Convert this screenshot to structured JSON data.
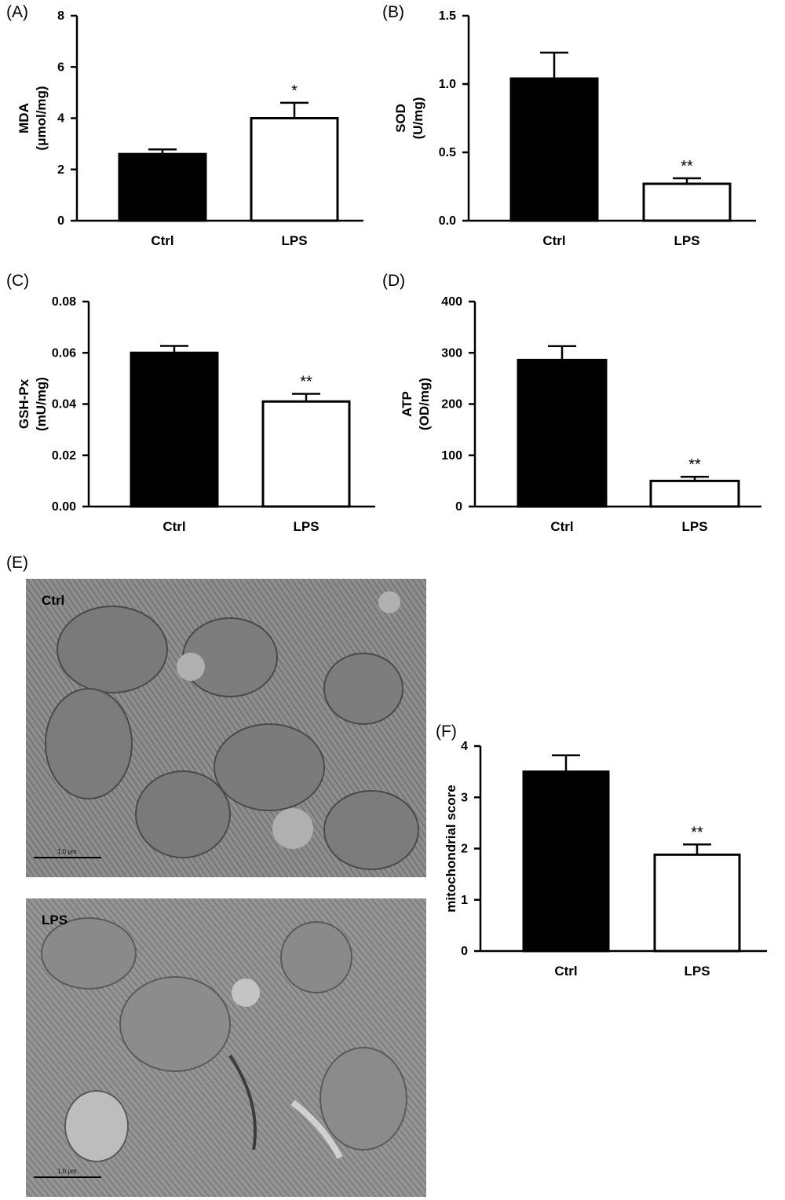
{
  "chart_data": [
    {
      "panel": "(A)",
      "type": "bar",
      "categories": [
        "Ctrl",
        "LPS"
      ],
      "values": [
        2.6,
        4.0
      ],
      "errors": [
        0.18,
        0.6
      ],
      "significance": [
        "",
        "*"
      ],
      "ylabel": [
        "MDA",
        "(μmol/mg)"
      ],
      "ylim": [
        0,
        8
      ],
      "yticks": [
        "0",
        "2",
        "4",
        "6",
        "8"
      ],
      "bar_colors": [
        "#000000",
        "#ffffff"
      ]
    },
    {
      "panel": "(B)",
      "type": "bar",
      "categories": [
        "Ctrl",
        "LPS"
      ],
      "values": [
        1.04,
        0.27
      ],
      "errors": [
        0.19,
        0.04
      ],
      "significance": [
        "",
        "**"
      ],
      "ylabel": [
        "SOD",
        "(U/mg)"
      ],
      "ylim": [
        0,
        1.5
      ],
      "yticks": [
        "0.0",
        "0.5",
        "1.0",
        "1.5"
      ],
      "bar_colors": [
        "#000000",
        "#ffffff"
      ]
    },
    {
      "panel": "(C)",
      "type": "bar",
      "categories": [
        "Ctrl",
        "LPS"
      ],
      "values": [
        0.06,
        0.041
      ],
      "errors": [
        0.0027,
        0.003
      ],
      "significance": [
        "",
        "**"
      ],
      "ylabel": [
        "GSH-Px",
        "(mU/mg)"
      ],
      "ylim": [
        0,
        0.08
      ],
      "yticks": [
        "0.00",
        "0.02",
        "0.04",
        "0.06",
        "0.08"
      ],
      "bar_colors": [
        "#000000",
        "#ffffff"
      ]
    },
    {
      "panel": "(D)",
      "type": "bar",
      "categories": [
        "Ctrl",
        "LPS"
      ],
      "values": [
        286,
        50
      ],
      "errors": [
        27,
        8
      ],
      "significance": [
        "",
        "**"
      ],
      "ylabel": [
        "ATP",
        "(OD/mg)"
      ],
      "ylim": [
        0,
        400
      ],
      "yticks": [
        "0",
        "100",
        "200",
        "300",
        "400"
      ],
      "bar_colors": [
        "#000000",
        "#ffffff"
      ]
    },
    {
      "panel": "(F)",
      "type": "bar",
      "categories": [
        "Ctrl",
        "LPS"
      ],
      "values": [
        3.5,
        1.88
      ],
      "errors": [
        0.32,
        0.2
      ],
      "significance": [
        "",
        "**"
      ],
      "ylabel": [
        "mitochondrial score"
      ],
      "ylim": [
        0,
        4
      ],
      "yticks": [
        "0",
        "1",
        "2",
        "3",
        "4"
      ],
      "bar_colors": [
        "#000000",
        "#ffffff"
      ]
    }
  ],
  "micrographs": {
    "panel": "(E)",
    "images": [
      {
        "label": "Ctrl",
        "scale": "1.0 μm"
      },
      {
        "label": "LPS",
        "scale": "1.0 μm"
      }
    ]
  }
}
